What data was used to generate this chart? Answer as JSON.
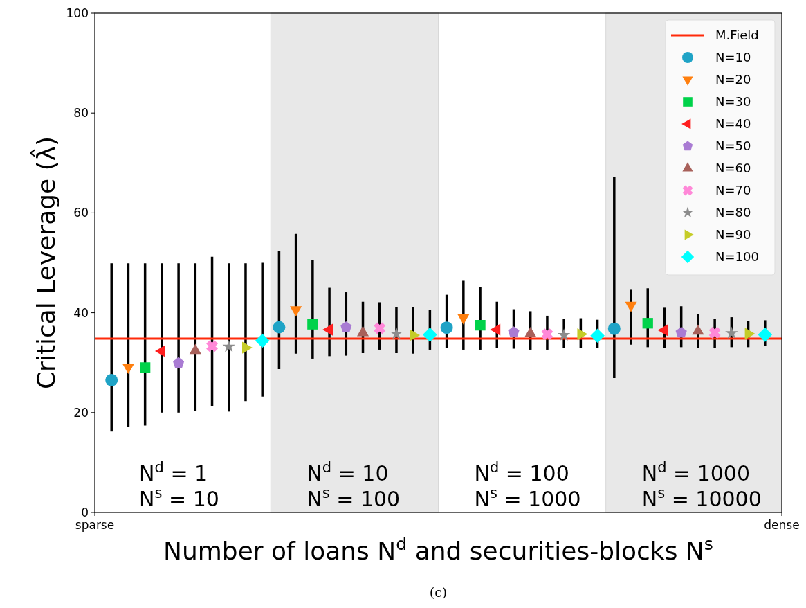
{
  "chart_data": {
    "type": "scatter",
    "xlabel": "Number of loans N$^{d}$ and securities-blocks N$^{s}$",
    "ylabel": "Critical Leverage (λ̂)",
    "categories": [
      "sparse",
      null,
      null,
      null,
      null,
      null,
      null,
      null,
      null,
      null,
      null,
      null,
      null,
      null,
      null,
      null,
      null,
      null,
      null,
      null,
      null,
      null,
      null,
      null,
      null,
      null,
      null,
      null,
      null,
      null,
      null,
      null,
      null,
      null,
      null,
      null,
      null,
      null,
      null,
      null,
      null,
      "dense"
    ],
    "ylim": [
      0,
      100
    ],
    "yticks": [
      0,
      20,
      40,
      60,
      80,
      100
    ],
    "grid": false,
    "legend": "top right",
    "ref_lines": [
      {
        "axis": "y",
        "value": 34.8,
        "label": "M.Field",
        "color": "#ff2a0a",
        "line_style": "solid"
      }
    ],
    "annotations": [
      "N$^{d}$ = 1\nN$^{s}$ = 10",
      "N$^{d}$ = 10\nN$^{s}$ = 100",
      "N$^{d}$ = 100\nN$^{s}$ = 1000",
      "N$^{d}$ = 1000\nN$^{s}$ = 10000",
      "(c)"
    ],
    "series": [
      {
        "name": "N=10",
        "color": "#1fa3c6",
        "marker": "circle",
        "values": [
          null,
          26.5,
          null,
          null,
          null,
          null,
          null,
          null,
          null,
          null,
          null,
          37.1,
          null,
          null,
          null,
          null,
          null,
          null,
          null,
          null,
          null,
          37.0,
          null,
          null,
          null,
          null,
          null,
          null,
          null,
          null,
          null,
          36.8,
          null,
          null,
          null,
          null,
          null,
          null,
          null,
          null,
          null,
          null
        ],
        "errors": [
          null,
          [
            16.2,
            49.9
          ],
          null,
          null,
          null,
          null,
          null,
          null,
          null,
          null,
          null,
          [
            28.7,
            52.4
          ],
          null,
          null,
          null,
          null,
          null,
          null,
          null,
          null,
          null,
          [
            33.0,
            43.6
          ],
          null,
          null,
          null,
          null,
          null,
          null,
          null,
          null,
          null,
          [
            26.9,
            67.2
          ],
          null,
          null,
          null,
          null,
          null,
          null,
          null,
          null,
          null,
          null
        ]
      },
      {
        "name": "N=20",
        "color": "#ff7f0e",
        "marker": "triangle-down",
        "values": [
          null,
          null,
          29.1,
          null,
          null,
          null,
          null,
          null,
          null,
          null,
          null,
          null,
          40.6,
          null,
          null,
          null,
          null,
          null,
          null,
          null,
          null,
          null,
          39.0,
          null,
          null,
          null,
          null,
          null,
          null,
          null,
          null,
          null,
          41.5,
          null,
          null,
          null,
          null,
          null,
          null,
          null,
          null,
          null
        ],
        "errors": [
          null,
          null,
          [
            17.2,
            49.9
          ],
          null,
          null,
          null,
          null,
          null,
          null,
          null,
          null,
          null,
          [
            31.8,
            55.8
          ],
          null,
          null,
          null,
          null,
          null,
          null,
          null,
          null,
          null,
          [
            32.6,
            46.4
          ],
          null,
          null,
          null,
          null,
          null,
          null,
          null,
          null,
          null,
          [
            33.6,
            44.6
          ],
          null,
          null,
          null,
          null,
          null,
          null,
          null,
          null,
          null
        ]
      },
      {
        "name": "N=30",
        "color": "#00d24a",
        "marker": "square",
        "values": [
          null,
          null,
          null,
          29.0,
          null,
          null,
          null,
          null,
          null,
          null,
          null,
          null,
          null,
          37.7,
          null,
          null,
          null,
          null,
          null,
          null,
          null,
          null,
          null,
          37.5,
          null,
          null,
          null,
          null,
          null,
          null,
          null,
          null,
          null,
          37.9,
          null,
          null,
          null,
          null,
          null,
          null,
          null,
          null
        ],
        "errors": [
          null,
          null,
          null,
          [
            17.4,
            49.9
          ],
          null,
          null,
          null,
          null,
          null,
          null,
          null,
          null,
          null,
          [
            30.8,
            50.5
          ],
          null,
          null,
          null,
          null,
          null,
          null,
          null,
          null,
          null,
          [
            32.6,
            45.2
          ],
          null,
          null,
          null,
          null,
          null,
          null,
          null,
          null,
          null,
          [
            33.1,
            44.9
          ],
          null,
          null,
          null,
          null,
          null,
          null,
          null,
          null
        ]
      },
      {
        "name": "N=40",
        "color": "#ff1f1f",
        "marker": "triangle-left",
        "values": [
          null,
          null,
          null,
          null,
          32.3,
          null,
          null,
          null,
          null,
          null,
          null,
          null,
          null,
          null,
          36.6,
          null,
          null,
          null,
          null,
          null,
          null,
          null,
          null,
          null,
          36.6,
          null,
          null,
          null,
          null,
          null,
          null,
          null,
          null,
          null,
          36.5,
          null,
          null,
          null,
          null,
          null,
          null,
          null
        ],
        "errors": [
          null,
          null,
          null,
          null,
          [
            20.0,
            49.9
          ],
          null,
          null,
          null,
          null,
          null,
          null,
          null,
          null,
          null,
          [
            31.3,
            45.0
          ],
          null,
          null,
          null,
          null,
          null,
          null,
          null,
          null,
          null,
          [
            33.0,
            42.2
          ],
          null,
          null,
          null,
          null,
          null,
          null,
          null,
          null,
          null,
          [
            32.9,
            41.0
          ],
          null,
          null,
          null,
          null,
          null,
          null,
          null
        ]
      },
      {
        "name": "N=50",
        "color": "#a97bd3",
        "values": [
          null,
          null,
          null,
          null,
          null,
          29.9,
          null,
          null,
          null,
          null,
          null,
          null,
          null,
          null,
          null,
          37.1,
          null,
          null,
          null,
          null,
          null,
          null,
          null,
          null,
          null,
          36.1,
          null,
          null,
          null,
          null,
          null,
          null,
          null,
          null,
          null,
          36.0,
          null,
          null,
          null,
          null,
          null,
          null
        ],
        "errors": [
          null,
          null,
          null,
          null,
          null,
          [
            20.0,
            49.9
          ],
          null,
          null,
          null,
          null,
          null,
          null,
          null,
          null,
          null,
          [
            31.4,
            44.1
          ],
          null,
          null,
          null,
          null,
          null,
          null,
          null,
          null,
          null,
          [
            32.8,
            40.7
          ],
          null,
          null,
          null,
          null,
          null,
          null,
          null,
          null,
          null,
          [
            33.1,
            41.3
          ],
          null,
          null,
          null,
          null,
          null,
          null
        ]
      },
      {
        "name": "N=60",
        "color": "#a8605a",
        "marker": "triangle",
        "values": [
          null,
          null,
          null,
          null,
          null,
          null,
          32.4,
          null,
          null,
          null,
          null,
          null,
          null,
          null,
          null,
          null,
          36.0,
          null,
          null,
          null,
          null,
          null,
          null,
          null,
          null,
          null,
          35.8,
          null,
          null,
          null,
          null,
          null,
          null,
          null,
          null,
          null,
          36.3,
          null,
          null,
          null,
          null,
          null
        ],
        "errors": [
          null,
          null,
          null,
          null,
          null,
          null,
          [
            20.3,
            49.9
          ],
          null,
          null,
          null,
          null,
          null,
          null,
          null,
          null,
          null,
          [
            31.9,
            42.2
          ],
          null,
          null,
          null,
          null,
          null,
          null,
          null,
          null,
          null,
          [
            32.6,
            40.3
          ],
          null,
          null,
          null,
          null,
          null,
          null,
          null,
          null,
          null,
          [
            32.9,
            39.7
          ],
          null,
          null,
          null,
          null,
          null
        ]
      },
      {
        "name": "N=70",
        "color": "#ff88d8",
        "marker": "cross",
        "values": [
          null,
          null,
          null,
          null,
          null,
          null,
          null,
          33.3,
          null,
          null,
          null,
          null,
          null,
          null,
          null,
          null,
          null,
          36.9,
          null,
          null,
          null,
          null,
          null,
          null,
          null,
          null,
          null,
          35.7,
          null,
          null,
          null,
          null,
          null,
          null,
          null,
          null,
          null,
          36.0,
          null,
          null,
          null,
          null
        ],
        "errors": [
          null,
          null,
          null,
          null,
          null,
          null,
          null,
          [
            21.3,
            51.2
          ],
          null,
          null,
          null,
          null,
          null,
          null,
          null,
          null,
          null,
          [
            32.6,
            42.1
          ],
          null,
          null,
          null,
          null,
          null,
          null,
          null,
          null,
          null,
          [
            32.6,
            39.4
          ],
          null,
          null,
          null,
          null,
          null,
          null,
          null,
          null,
          null,
          [
            33.0,
            38.7
          ],
          null,
          null,
          null,
          null
        ]
      },
      {
        "name": "N=80",
        "color": "#8c8c8c",
        "marker": "star",
        "values": [
          null,
          null,
          null,
          null,
          null,
          null,
          null,
          null,
          33.2,
          null,
          null,
          null,
          null,
          null,
          null,
          null,
          null,
          null,
          35.8,
          null,
          null,
          null,
          null,
          null,
          null,
          null,
          null,
          null,
          35.5,
          null,
          null,
          null,
          null,
          null,
          null,
          null,
          null,
          null,
          35.9,
          null,
          null,
          null
        ],
        "errors": [
          null,
          null,
          null,
          null,
          null,
          null,
          null,
          null,
          [
            20.2,
            49.9
          ],
          null,
          null,
          null,
          null,
          null,
          null,
          null,
          null,
          null,
          [
            31.9,
            41.1
          ],
          null,
          null,
          null,
          null,
          null,
          null,
          null,
          null,
          null,
          [
            32.9,
            38.8
          ],
          null,
          null,
          null,
          null,
          null,
          null,
          null,
          null,
          null,
          [
            33.1,
            39.1
          ],
          null,
          null,
          null
        ]
      },
      {
        "name": "N=90",
        "color": "#c5cc27",
        "marker": "triangle-right",
        "values": [
          null,
          null,
          null,
          null,
          null,
          null,
          null,
          null,
          null,
          33.0,
          null,
          null,
          null,
          null,
          null,
          null,
          null,
          null,
          null,
          35.5,
          null,
          null,
          null,
          null,
          null,
          null,
          null,
          null,
          null,
          35.7,
          null,
          null,
          null,
          null,
          null,
          null,
          null,
          null,
          null,
          35.8,
          null,
          null
        ],
        "errors": [
          null,
          null,
          null,
          null,
          null,
          null,
          null,
          null,
          null,
          [
            22.3,
            49.9
          ],
          null,
          null,
          null,
          null,
          null,
          null,
          null,
          null,
          null,
          [
            31.8,
            41.1
          ],
          null,
          null,
          null,
          null,
          null,
          null,
          null,
          null,
          null,
          [
            33.0,
            38.9
          ],
          null,
          null,
          null,
          null,
          null,
          null,
          null,
          null,
          null,
          [
            33.1,
            38.3
          ],
          null,
          null
        ]
      },
      {
        "name": "N=100",
        "color": "#00ffff",
        "marker": "diamond",
        "values": [
          null,
          null,
          null,
          null,
          null,
          null,
          null,
          null,
          null,
          null,
          34.4,
          null,
          null,
          null,
          null,
          null,
          null,
          null,
          null,
          null,
          35.6,
          null,
          null,
          null,
          null,
          null,
          null,
          null,
          null,
          null,
          35.4,
          null,
          null,
          null,
          null,
          null,
          null,
          null,
          null,
          null,
          35.6,
          null
        ],
        "errors": [
          null,
          null,
          null,
          null,
          null,
          null,
          null,
          null,
          null,
          null,
          [
            23.2,
            50.0
          ],
          null,
          null,
          null,
          null,
          null,
          null,
          null,
          null,
          null,
          [
            32.6,
            40.5
          ],
          null,
          null,
          null,
          null,
          null,
          null,
          null,
          null,
          null,
          [
            33.0,
            38.6
          ],
          null,
          null,
          null,
          null,
          null,
          null,
          null,
          null,
          null,
          [
            33.4,
            38.5
          ],
          null
        ]
      }
    ]
  }
}
